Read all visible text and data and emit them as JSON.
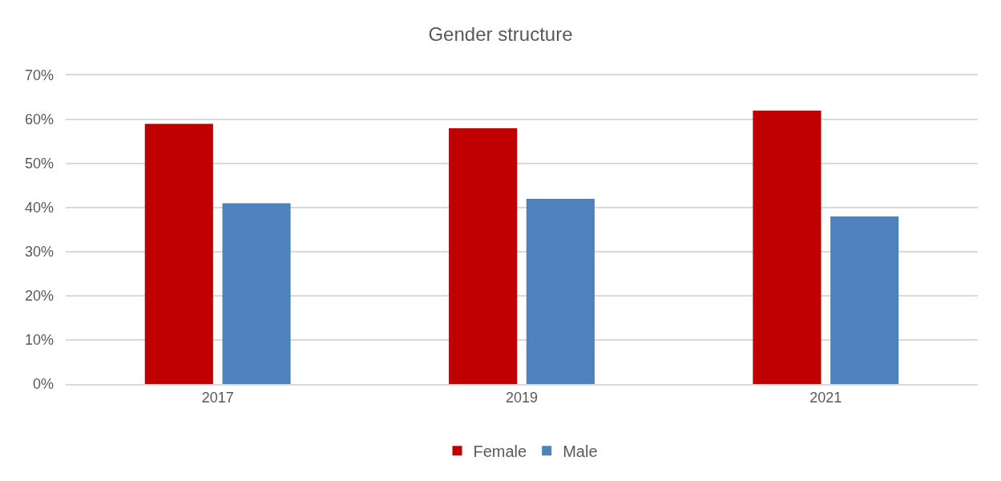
{
  "chart_data": {
    "type": "bar",
    "title": "Gender structure",
    "categories": [
      "2017",
      "2019",
      "2021"
    ],
    "series": [
      {
        "name": "Female",
        "color": "#c00000",
        "values": [
          59,
          58,
          62
        ]
      },
      {
        "name": "Male",
        "color": "#4f81bd",
        "values": [
          41,
          42,
          38
        ]
      }
    ],
    "ylim": [
      0,
      70
    ],
    "yticks": [
      {
        "value": 0,
        "label": "0%"
      },
      {
        "value": 10,
        "label": "10%"
      },
      {
        "value": 20,
        "label": "20%"
      },
      {
        "value": 30,
        "label": "30%"
      },
      {
        "value": 40,
        "label": "40%"
      },
      {
        "value": 50,
        "label": "50%"
      },
      {
        "value": 60,
        "label": "60%"
      },
      {
        "value": 70,
        "label": "70%"
      }
    ],
    "grid": "y",
    "legend": "bottom"
  }
}
